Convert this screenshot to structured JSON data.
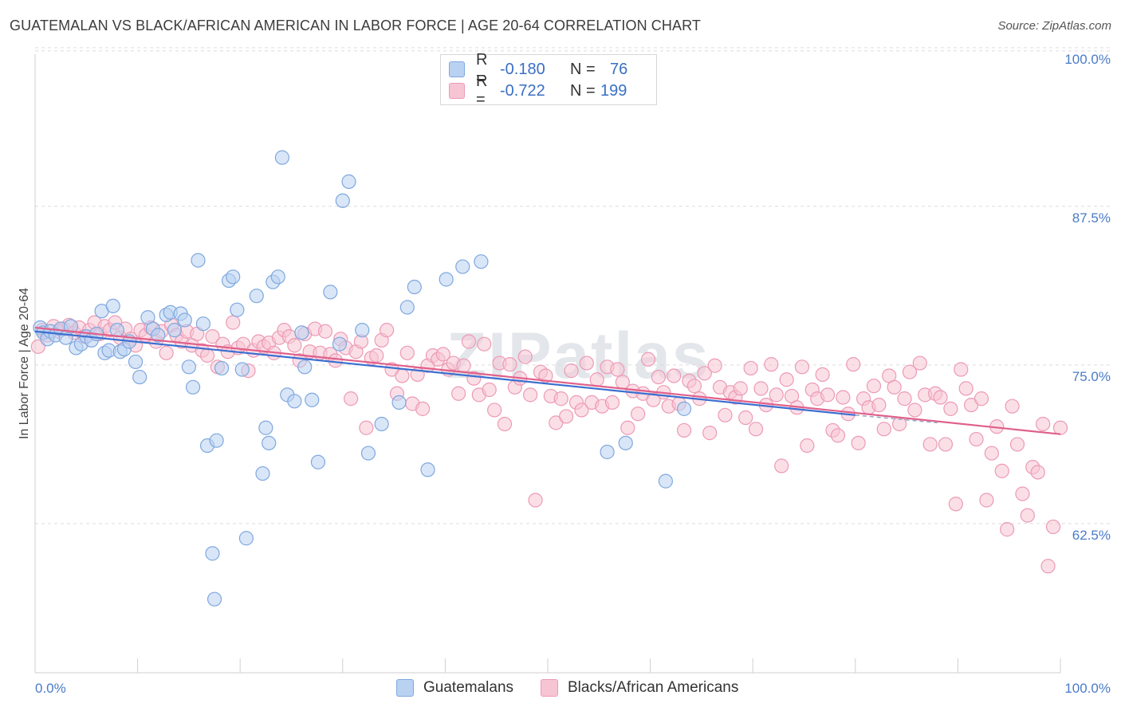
{
  "title": "GUATEMALAN VS BLACK/AFRICAN AMERICAN IN LABOR FORCE | AGE 20-64 CORRELATION CHART",
  "source": "Source: ZipAtlas.com",
  "watermark": "ZIPatlas",
  "legend": {
    "rows": [
      {
        "r_label": "R =",
        "r_value": "-0.180",
        "n_label": "N =",
        "n_value": "76"
      },
      {
        "r_label": "R =",
        "r_value": "-0.722",
        "n_label": "N =",
        "n_value": "199"
      }
    ]
  },
  "bottom_legend": [
    "Guatemalans",
    "Blacks/African Americans"
  ],
  "colors": {
    "guatemalan_fill": "#b9d2f2",
    "guatemalan_stroke": "#7fa8de",
    "guatemalan_line": "#3a6fd0",
    "black_fill": "#f7c4d4",
    "black_stroke": "#ec9ab6",
    "black_line": "#e0608a",
    "tick_label": "#4a7bc8",
    "grid": "#dcdcdc"
  },
  "chart_data": {
    "type": "scatter",
    "title": "GUATEMALAN VS BLACK/AFRICAN AMERICAN IN LABOR FORCE | AGE 20-64 CORRELATION CHART",
    "ylabel": "In Labor Force | Age 20-64",
    "xlabel": "",
    "xlim": [
      0,
      100
    ],
    "ylim": [
      52,
      102
    ],
    "x_tick_labels": [
      "0.0%",
      "100.0%"
    ],
    "y_ticks": [
      {
        "value": 100,
        "label": "100.0%"
      },
      {
        "value": 87.5,
        "label": "87.5%"
      },
      {
        "value": 75,
        "label": "75.0%"
      },
      {
        "value": 62.5,
        "label": "62.5%"
      }
    ],
    "grid": "horizontal dashed",
    "legend_position": "top-center",
    "series": [
      {
        "name": "Guatemalans",
        "r": -0.18,
        "n": 76,
        "trend": {
          "x0": 0,
          "y0": 78.9,
          "x1": 80,
          "y1": 72.3,
          "dashed_to_x": 88,
          "dashed_to_y": 71.7
        },
        "points": [
          [
            0.5,
            79.2
          ],
          [
            0.8,
            78.8
          ],
          [
            1.2,
            78.3
          ],
          [
            1.5,
            78.9
          ],
          [
            2.0,
            78.6
          ],
          [
            2.5,
            79.1
          ],
          [
            3.0,
            78.4
          ],
          [
            3.5,
            79.3
          ],
          [
            4.0,
            77.6
          ],
          [
            4.5,
            77.9
          ],
          [
            5.0,
            78.5
          ],
          [
            5.5,
            78.2
          ],
          [
            6.0,
            78.7
          ],
          [
            6.5,
            80.5
          ],
          [
            6.8,
            77.2
          ],
          [
            7.2,
            77.4
          ],
          [
            7.6,
            80.9
          ],
          [
            8.0,
            79.0
          ],
          [
            8.3,
            77.3
          ],
          [
            8.7,
            77.5
          ],
          [
            9.2,
            78.1
          ],
          [
            9.8,
            76.5
          ],
          [
            10.2,
            75.3
          ],
          [
            11.0,
            80.0
          ],
          [
            11.5,
            79.1
          ],
          [
            12.0,
            78.6
          ],
          [
            12.8,
            80.2
          ],
          [
            13.2,
            80.4
          ],
          [
            13.6,
            79.0
          ],
          [
            14.2,
            80.3
          ],
          [
            14.6,
            79.8
          ],
          [
            15.0,
            76.1
          ],
          [
            15.4,
            74.5
          ],
          [
            15.9,
            84.5
          ],
          [
            16.4,
            79.5
          ],
          [
            16.8,
            69.9
          ],
          [
            17.3,
            61.4
          ],
          [
            17.7,
            70.3
          ],
          [
            18.2,
            76.0
          ],
          [
            18.9,
            82.9
          ],
          [
            19.3,
            83.2
          ],
          [
            19.7,
            80.6
          ],
          [
            20.2,
            75.9
          ],
          [
            20.6,
            62.6
          ],
          [
            21.6,
            81.7
          ],
          [
            22.2,
            67.7
          ],
          [
            22.5,
            71.3
          ],
          [
            22.8,
            70.1
          ],
          [
            23.2,
            82.8
          ],
          [
            23.7,
            83.2
          ],
          [
            24.1,
            92.6
          ],
          [
            24.6,
            73.9
          ],
          [
            25.3,
            73.4
          ],
          [
            26.0,
            78.8
          ],
          [
            26.3,
            76.1
          ],
          [
            27.0,
            73.5
          ],
          [
            27.6,
            68.6
          ],
          [
            28.8,
            82.0
          ],
          [
            29.7,
            77.9
          ],
          [
            30.6,
            90.7
          ],
          [
            31.9,
            79.0
          ],
          [
            32.5,
            69.3
          ],
          [
            33.8,
            71.6
          ],
          [
            35.5,
            73.3
          ],
          [
            36.3,
            80.8
          ],
          [
            37.0,
            82.4
          ],
          [
            38.3,
            68.0
          ],
          [
            40.1,
            83.0
          ],
          [
            41.7,
            84.0
          ],
          [
            43.5,
            84.4
          ],
          [
            55.8,
            69.4
          ],
          [
            57.6,
            70.1
          ],
          [
            61.5,
            67.1
          ],
          [
            63.3,
            72.8
          ],
          [
            30.0,
            89.2
          ],
          [
            17.5,
            57.8
          ]
        ]
      },
      {
        "name": "Blacks/African Americans",
        "r": -0.722,
        "n": 199,
        "trend": {
          "x0": 0,
          "y0": 79.2,
          "x1": 100,
          "y1": 70.8
        },
        "points": [
          [
            0.3,
            77.7
          ],
          [
            0.7,
            79.0
          ],
          [
            1.2,
            78.6
          ],
          [
            1.8,
            79.3
          ],
          [
            2.3,
            78.9
          ],
          [
            2.8,
            79.1
          ],
          [
            3.3,
            79.4
          ],
          [
            3.8,
            78.8
          ],
          [
            4.3,
            79.2
          ],
          [
            4.8,
            78.5
          ],
          [
            5.3,
            79.0
          ],
          [
            5.8,
            79.6
          ],
          [
            6.3,
            78.7
          ],
          [
            6.8,
            79.3
          ],
          [
            7.3,
            79.0
          ],
          [
            7.8,
            79.6
          ],
          [
            8.3,
            78.4
          ],
          [
            8.8,
            79.1
          ],
          [
            9.3,
            78.3
          ],
          [
            9.8,
            77.8
          ],
          [
            10.3,
            79.0
          ],
          [
            10.8,
            78.6
          ],
          [
            11.3,
            79.2
          ],
          [
            11.8,
            78.1
          ],
          [
            12.3,
            78.9
          ],
          [
            12.8,
            77.2
          ],
          [
            13.3,
            79.4
          ],
          [
            13.8,
            78.6
          ],
          [
            14.3,
            78.1
          ],
          [
            14.8,
            78.9
          ],
          [
            15.3,
            77.8
          ],
          [
            15.8,
            78.7
          ],
          [
            16.3,
            77.4
          ],
          [
            16.8,
            77.0
          ],
          [
            17.3,
            78.5
          ],
          [
            17.8,
            76.1
          ],
          [
            18.3,
            77.9
          ],
          [
            18.8,
            77.3
          ],
          [
            19.3,
            79.6
          ],
          [
            19.8,
            77.6
          ],
          [
            20.3,
            77.9
          ],
          [
            20.8,
            75.8
          ],
          [
            21.3,
            77.4
          ],
          [
            21.8,
            78.1
          ],
          [
            22.3,
            77.7
          ],
          [
            22.8,
            78.0
          ],
          [
            23.3,
            77.2
          ],
          [
            23.8,
            78.4
          ],
          [
            24.3,
            79.0
          ],
          [
            24.8,
            78.5
          ],
          [
            25.3,
            77.8
          ],
          [
            25.8,
            76.6
          ],
          [
            26.3,
            78.7
          ],
          [
            26.8,
            77.3
          ],
          [
            27.3,
            79.1
          ],
          [
            27.8,
            77.2
          ],
          [
            28.3,
            78.9
          ],
          [
            28.8,
            77.1
          ],
          [
            29.3,
            76.6
          ],
          [
            29.8,
            78.3
          ],
          [
            30.3,
            77.6
          ],
          [
            30.8,
            73.6
          ],
          [
            31.3,
            77.3
          ],
          [
            31.8,
            78.1
          ],
          [
            32.3,
            71.3
          ],
          [
            32.8,
            76.8
          ],
          [
            33.3,
            77.0
          ],
          [
            33.8,
            78.2
          ],
          [
            34.3,
            79.0
          ],
          [
            34.8,
            75.9
          ],
          [
            35.3,
            74.0
          ],
          [
            35.8,
            75.4
          ],
          [
            36.3,
            77.2
          ],
          [
            36.8,
            73.2
          ],
          [
            37.3,
            75.5
          ],
          [
            37.8,
            72.8
          ],
          [
            38.3,
            76.2
          ],
          [
            38.8,
            77.0
          ],
          [
            39.3,
            76.7
          ],
          [
            39.8,
            77.1
          ],
          [
            40.3,
            75.9
          ],
          [
            40.8,
            76.4
          ],
          [
            41.3,
            74.0
          ],
          [
            41.8,
            76.2
          ],
          [
            42.3,
            78.1
          ],
          [
            42.8,
            75.2
          ],
          [
            43.3,
            73.9
          ],
          [
            43.8,
            77.9
          ],
          [
            44.3,
            74.3
          ],
          [
            44.8,
            72.7
          ],
          [
            45.3,
            76.4
          ],
          [
            45.8,
            71.6
          ],
          [
            46.3,
            76.3
          ],
          [
            46.8,
            74.5
          ],
          [
            47.3,
            75.2
          ],
          [
            47.8,
            76.9
          ],
          [
            48.3,
            73.9
          ],
          [
            48.8,
            65.6
          ],
          [
            49.3,
            75.7
          ],
          [
            49.8,
            75.4
          ],
          [
            50.3,
            73.8
          ],
          [
            50.8,
            71.7
          ],
          [
            51.3,
            73.6
          ],
          [
            51.8,
            72.2
          ],
          [
            52.3,
            75.8
          ],
          [
            52.8,
            73.3
          ],
          [
            53.3,
            72.7
          ],
          [
            53.8,
            76.4
          ],
          [
            54.3,
            73.3
          ],
          [
            54.8,
            75.1
          ],
          [
            55.3,
            73.0
          ],
          [
            55.8,
            76.1
          ],
          [
            56.3,
            73.3
          ],
          [
            56.8,
            75.9
          ],
          [
            57.3,
            74.9
          ],
          [
            57.8,
            71.3
          ],
          [
            58.3,
            74.2
          ],
          [
            58.8,
            72.4
          ],
          [
            59.3,
            74.0
          ],
          [
            59.8,
            76.7
          ],
          [
            60.3,
            73.5
          ],
          [
            60.8,
            75.3
          ],
          [
            61.3,
            74.1
          ],
          [
            61.8,
            73.0
          ],
          [
            62.3,
            75.4
          ],
          [
            62.8,
            73.2
          ],
          [
            63.3,
            71.1
          ],
          [
            63.8,
            75.0
          ],
          [
            64.3,
            74.6
          ],
          [
            64.8,
            73.6
          ],
          [
            65.3,
            75.6
          ],
          [
            65.8,
            70.9
          ],
          [
            66.3,
            76.2
          ],
          [
            66.8,
            74.5
          ],
          [
            67.3,
            72.3
          ],
          [
            67.8,
            74.1
          ],
          [
            68.3,
            73.7
          ],
          [
            68.8,
            74.4
          ],
          [
            69.3,
            72.1
          ],
          [
            69.8,
            76.0
          ],
          [
            70.3,
            71.2
          ],
          [
            70.8,
            74.4
          ],
          [
            71.3,
            73.1
          ],
          [
            71.8,
            76.3
          ],
          [
            72.3,
            73.9
          ],
          [
            72.8,
            68.3
          ],
          [
            73.3,
            75.1
          ],
          [
            73.8,
            73.8
          ],
          [
            74.3,
            72.9
          ],
          [
            74.8,
            76.1
          ],
          [
            75.3,
            69.9
          ],
          [
            75.8,
            74.3
          ],
          [
            76.3,
            73.6
          ],
          [
            76.8,
            75.5
          ],
          [
            77.3,
            73.9
          ],
          [
            77.8,
            71.1
          ],
          [
            78.3,
            70.7
          ],
          [
            78.8,
            73.7
          ],
          [
            79.3,
            72.4
          ],
          [
            79.8,
            76.3
          ],
          [
            80.3,
            70.1
          ],
          [
            80.8,
            73.6
          ],
          [
            81.3,
            72.9
          ],
          [
            81.8,
            74.6
          ],
          [
            82.3,
            73.1
          ],
          [
            82.8,
            71.2
          ],
          [
            83.3,
            75.4
          ],
          [
            83.8,
            74.5
          ],
          [
            84.3,
            71.6
          ],
          [
            84.8,
            73.6
          ],
          [
            85.3,
            75.7
          ],
          [
            85.8,
            72.7
          ],
          [
            86.3,
            76.4
          ],
          [
            86.8,
            73.9
          ],
          [
            87.3,
            70.0
          ],
          [
            87.8,
            74.0
          ],
          [
            88.3,
            73.7
          ],
          [
            88.8,
            70.0
          ],
          [
            89.3,
            72.8
          ],
          [
            89.8,
            65.3
          ],
          [
            90.3,
            75.9
          ],
          [
            90.8,
            74.4
          ],
          [
            91.3,
            73.1
          ],
          [
            91.8,
            70.4
          ],
          [
            92.3,
            73.6
          ],
          [
            92.8,
            65.6
          ],
          [
            93.3,
            69.3
          ],
          [
            93.8,
            71.4
          ],
          [
            94.3,
            67.9
          ],
          [
            94.8,
            63.3
          ],
          [
            95.3,
            73.0
          ],
          [
            95.8,
            70.0
          ],
          [
            96.3,
            66.1
          ],
          [
            96.8,
            64.4
          ],
          [
            97.3,
            68.2
          ],
          [
            97.8,
            67.8
          ],
          [
            98.3,
            71.6
          ],
          [
            98.8,
            60.4
          ],
          [
            99.3,
            63.5
          ],
          [
            100.0,
            71.3
          ]
        ]
      }
    ]
  }
}
